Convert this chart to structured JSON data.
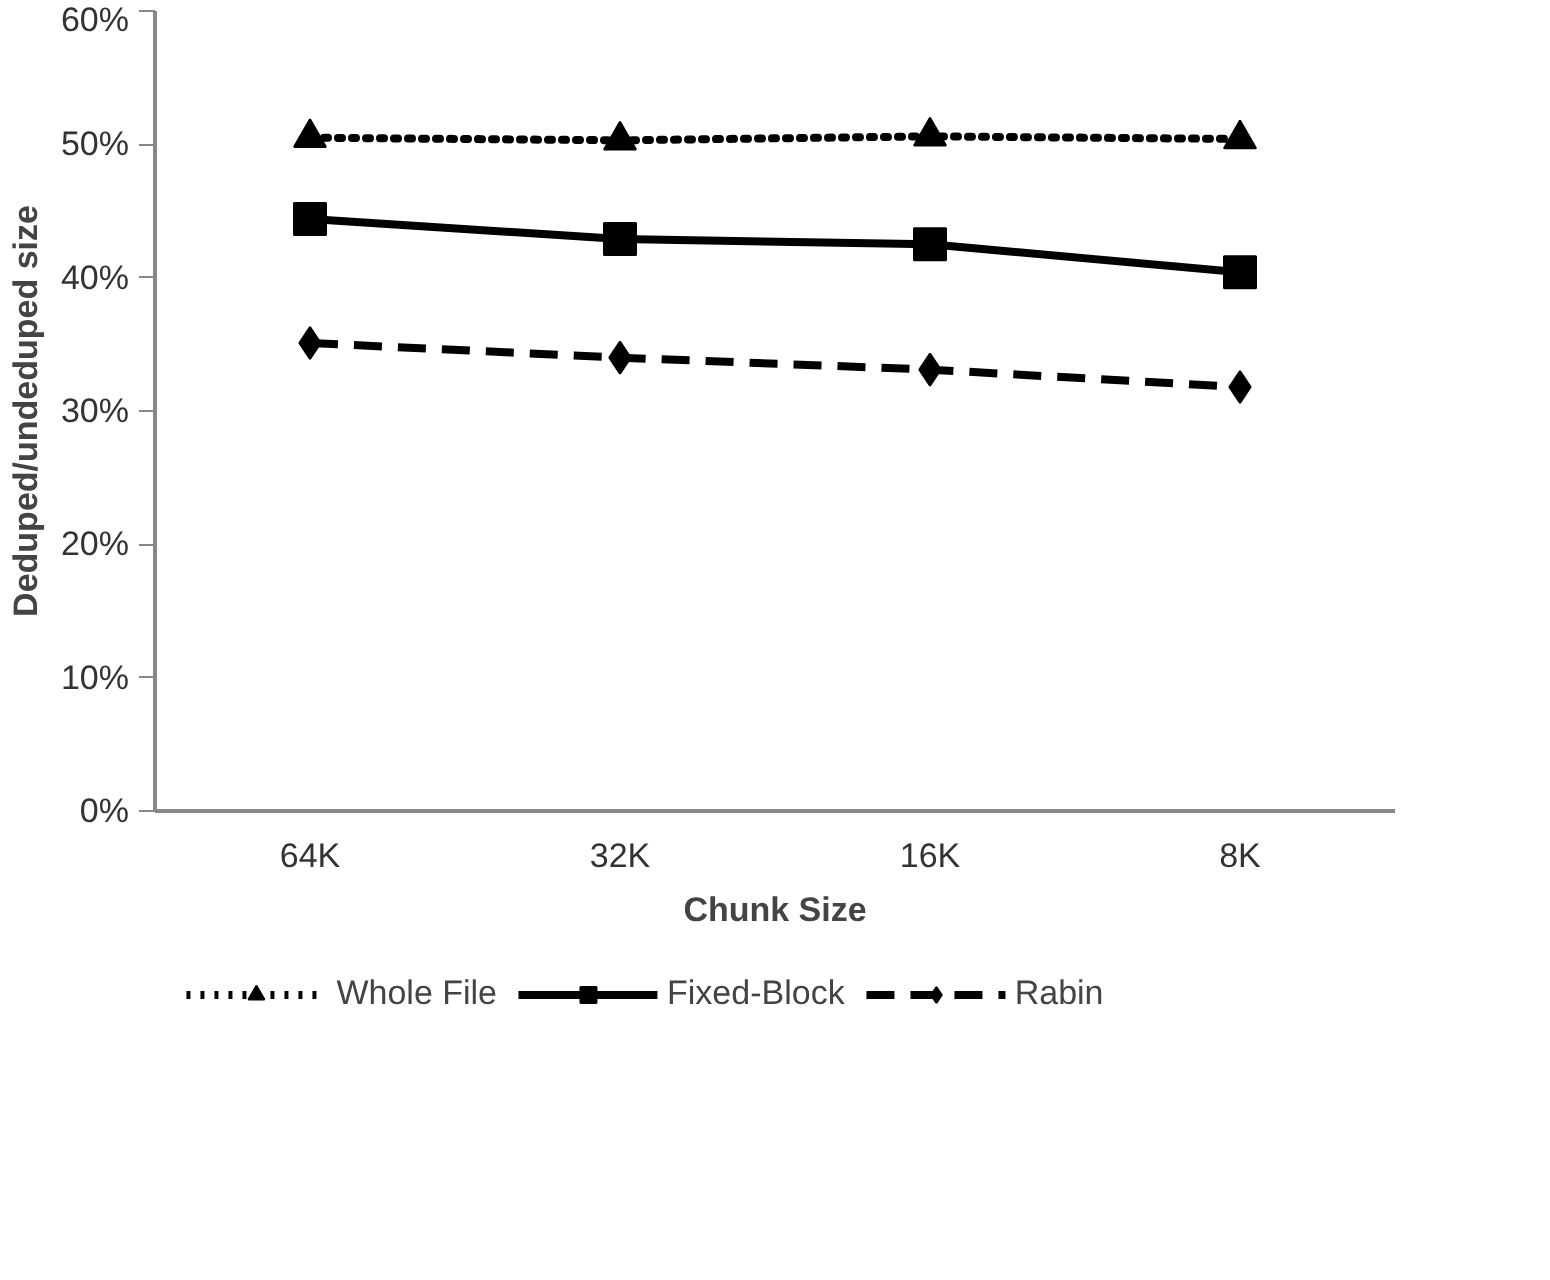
{
  "chart_data": {
    "type": "line",
    "xlabel": "Chunk Size",
    "ylabel": "Deduped/undeduped size",
    "categories": [
      "64K",
      "32K",
      "16K",
      "8K"
    ],
    "series": [
      {
        "name": "Whole File",
        "color": "#000000",
        "values": [
          50.5,
          50.3,
          50.6,
          50.4
        ],
        "marker": "triangle",
        "line_style": "dotted"
      },
      {
        "name": "Fixed-Block",
        "color": "#000000",
        "values": [
          44.4,
          42.9,
          42.5,
          40.4
        ],
        "marker": "square",
        "line_style": "solid"
      },
      {
        "name": "Rabin",
        "color": "#000000",
        "values": [
          35.1,
          34.0,
          33.1,
          31.8
        ],
        "marker": "diamond",
        "line_style": "dashed"
      }
    ],
    "ylim": [
      0,
      60
    ],
    "yticks": [
      {
        "value": 0,
        "label": "0%"
      },
      {
        "value": 10,
        "label": "10%"
      },
      {
        "value": 20,
        "label": "20%"
      },
      {
        "value": 30,
        "label": "30%"
      },
      {
        "value": 40,
        "label": "40%"
      },
      {
        "value": 50,
        "label": "50%"
      },
      {
        "value": 60,
        "label": "60%"
      }
    ],
    "grid": false,
    "legend": "bottom"
  }
}
